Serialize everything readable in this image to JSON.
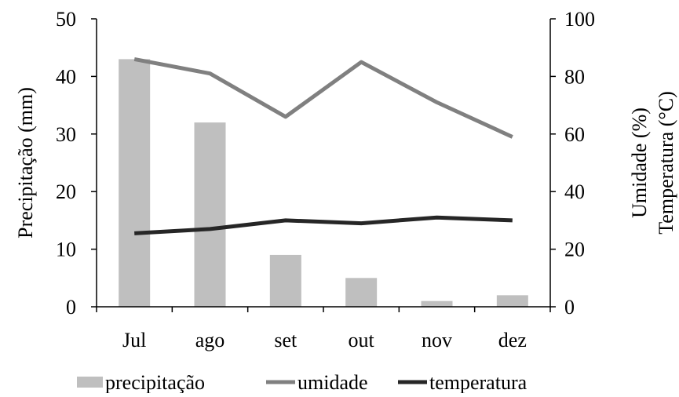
{
  "chart_data": {
    "type": "bar",
    "categories": [
      "Jul",
      "ago",
      "set",
      "out",
      "nov",
      "dez"
    ],
    "series": [
      {
        "name": "precipitação",
        "type": "bar",
        "axis": "left",
        "values": [
          43,
          32,
          9,
          5,
          1,
          2
        ],
        "color": "#bfbfbf"
      },
      {
        "name": "umidade",
        "type": "line",
        "axis": "right",
        "values": [
          86,
          81,
          66,
          85,
          71,
          59
        ],
        "color": "#808080"
      },
      {
        "name": "temperatura",
        "type": "line",
        "axis": "right",
        "values": [
          25.5,
          27,
          30,
          29,
          31,
          30
        ],
        "color": "#262626"
      }
    ],
    "ylabel": "Precipitação (mm)",
    "y2label_lines": [
      "Umidade (%)",
      "Temperatura (°C)"
    ],
    "ylim": [
      0,
      50
    ],
    "y2lim": [
      0,
      100
    ],
    "yticks": [
      0,
      10,
      20,
      30,
      40,
      50
    ],
    "y2ticks": [
      0,
      20,
      40,
      60,
      80,
      100
    ],
    "grid": false,
    "legend_position": "bottom"
  }
}
